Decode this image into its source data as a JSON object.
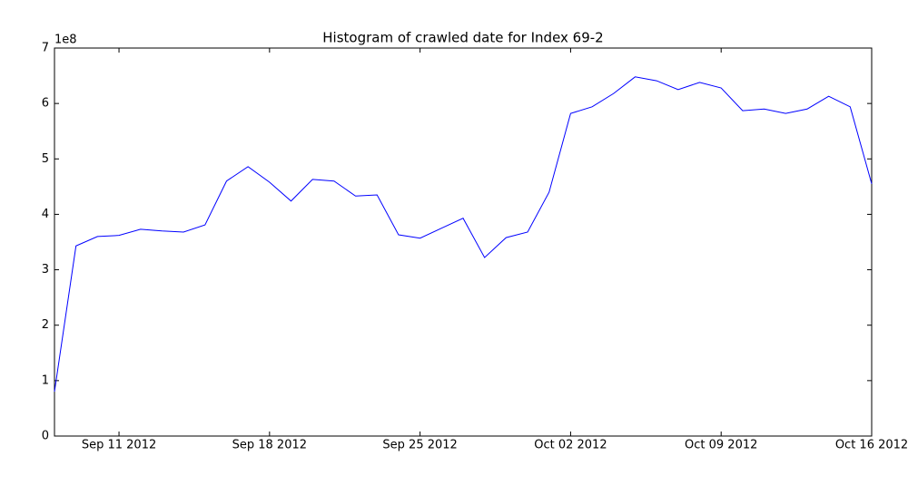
{
  "chart_data": {
    "type": "line",
    "title": "Histogram of crawled date for Index 69-2",
    "y_offset_label": "1e8",
    "x": [
      "2012-09-08",
      "2012-09-09",
      "2012-09-10",
      "2012-09-11",
      "2012-09-12",
      "2012-09-13",
      "2012-09-14",
      "2012-09-15",
      "2012-09-16",
      "2012-09-17",
      "2012-09-18",
      "2012-09-19",
      "2012-09-20",
      "2012-09-21",
      "2012-09-22",
      "2012-09-23",
      "2012-09-24",
      "2012-09-25",
      "2012-09-26",
      "2012-09-27",
      "2012-09-28",
      "2012-09-29",
      "2012-09-30",
      "2012-10-01",
      "2012-10-02",
      "2012-10-03",
      "2012-10-04",
      "2012-10-05",
      "2012-10-06",
      "2012-10-07",
      "2012-10-08",
      "2012-10-09",
      "2012-10-10",
      "2012-10-11",
      "2012-10-12",
      "2012-10-13",
      "2012-10-14",
      "2012-10-15",
      "2012-10-16"
    ],
    "series": [
      {
        "color": "#0000ff",
        "values": [
          0.8,
          3.43,
          3.6,
          3.62,
          3.73,
          3.7,
          3.68,
          3.81,
          4.6,
          4.86,
          4.58,
          4.24,
          4.63,
          4.6,
          4.33,
          4.35,
          3.63,
          3.57,
          3.75,
          3.93,
          3.22,
          3.58,
          3.68,
          4.4,
          5.82,
          5.94,
          6.18,
          6.48,
          6.41,
          6.25,
          6.38,
          6.28,
          5.87,
          5.9,
          5.82,
          5.9,
          6.13,
          5.94,
          4.55
        ]
      }
    ],
    "xlim": [
      "2012-09-08",
      "2012-10-16"
    ],
    "xticks": [
      {
        "value": "2012-09-11",
        "label": "Sep 11 2012"
      },
      {
        "value": "2012-09-18",
        "label": "Sep 18 2012"
      },
      {
        "value": "2012-09-25",
        "label": "Sep 25 2012"
      },
      {
        "value": "2012-10-02",
        "label": "Oct 02 2012"
      },
      {
        "value": "2012-10-09",
        "label": "Oct 09 2012"
      },
      {
        "value": "2012-10-16",
        "label": "Oct 16 2012"
      }
    ],
    "ylim": [
      0,
      7
    ],
    "yticks": [
      0,
      1,
      2,
      3,
      4,
      5,
      6,
      7
    ],
    "grid": false
  }
}
